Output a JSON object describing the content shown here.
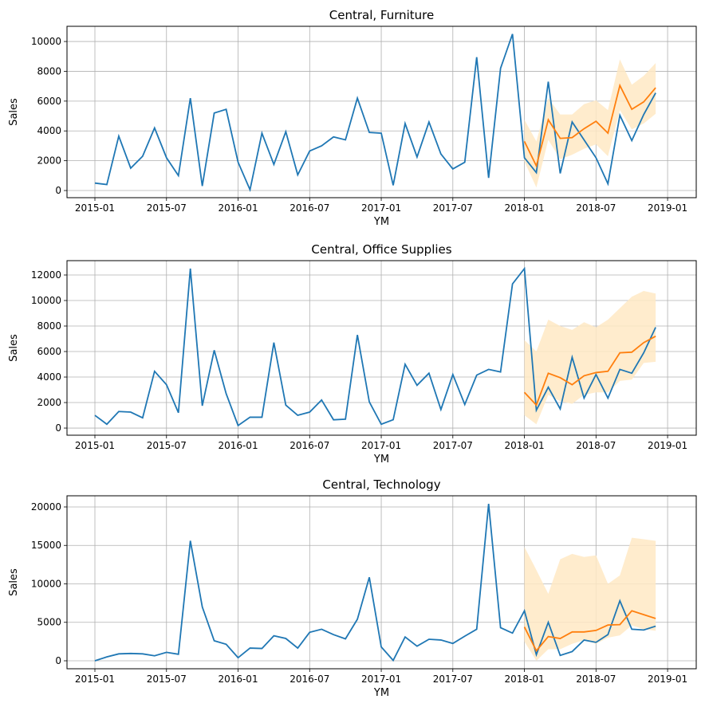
{
  "chart_data": [
    {
      "type": "line",
      "title": "Central, Furniture",
      "xlabel": "YM",
      "ylabel": "Sales",
      "grid": true,
      "x_start": "2015-01",
      "x_end": "2018-12",
      "xlim": [
        "2014-10",
        "2019-03"
      ],
      "ylim": [
        -480,
        11020
      ],
      "xticks": [
        "2015-01",
        "2015-07",
        "2016-01",
        "2016-07",
        "2017-01",
        "2017-07",
        "2018-01",
        "2018-07",
        "2019-01"
      ],
      "yticks": [
        0,
        2000,
        4000,
        6000,
        8000,
        10000
      ],
      "actual": [
        500,
        400,
        3650,
        1500,
        2300,
        4200,
        2200,
        1000,
        6200,
        300,
        5200,
        5450,
        1900,
        50,
        3850,
        1750,
        3950,
        1050,
        2650,
        3000,
        3600,
        3400,
        6200,
        3900,
        3850,
        350,
        4500,
        2250,
        4600,
        2450,
        1450,
        1900,
        8950,
        850,
        8200,
        10500,
        2200,
        1200,
        7300,
        1150,
        4600,
        3400,
        2200,
        450,
        5050,
        3350,
        5100,
        6550
      ],
      "forecast_start": "2018-01",
      "forecast": [
        3300,
        1650,
        4750,
        3500,
        3550,
        4150,
        4650,
        3850,
        7050,
        5450,
        5950,
        6900
      ],
      "lower": [
        1950,
        200,
        3400,
        2100,
        2400,
        2800,
        3100,
        2300,
        5400,
        4100,
        4500,
        5150
      ],
      "upper": [
        4750,
        3300,
        6200,
        5100,
        5100,
        5800,
        6050,
        5400,
        8800,
        7100,
        7700,
        8550
      ]
    },
    {
      "type": "line",
      "title": "Central, Office Supplies",
      "xlabel": "YM",
      "ylabel": "Sales",
      "grid": true,
      "x_start": "2015-01",
      "x_end": "2018-12",
      "xlim": [
        "2014-10",
        "2019-03"
      ],
      "ylim": [
        -560,
        13125
      ],
      "xticks": [
        "2015-01",
        "2015-07",
        "2016-01",
        "2016-07",
        "2017-01",
        "2017-07",
        "2018-01",
        "2018-07",
        "2019-01"
      ],
      "yticks": [
        0,
        2000,
        4000,
        6000,
        8000,
        10000,
        12000
      ],
      "actual": [
        1000,
        300,
        1300,
        1250,
        800,
        4450,
        3400,
        1200,
        12500,
        1750,
        6100,
        2700,
        200,
        850,
        850,
        6700,
        1800,
        1000,
        1250,
        2200,
        650,
        700,
        7300,
        2050,
        300,
        650,
        5000,
        3350,
        4300,
        1450,
        4200,
        1850,
        4150,
        4600,
        4400,
        11300,
        12500,
        1400,
        3200,
        1500,
        5550,
        2350,
        4200,
        2350,
        4600,
        4300,
        5900,
        7900
      ],
      "forecast_start": "2018-01",
      "forecast": [
        2800,
        1800,
        4300,
        3950,
        3400,
        4100,
        4350,
        4450,
        5900,
        5950,
        6700,
        7200
      ],
      "lower": [
        1000,
        300,
        2600,
        2100,
        1900,
        2600,
        2800,
        2800,
        3700,
        3800,
        5100,
        5200
      ],
      "upper": [
        6900,
        6000,
        8500,
        8000,
        7700,
        8300,
        7900,
        8500,
        9400,
        10300,
        10750,
        10550
      ]
    },
    {
      "type": "line",
      "title": "Central, Technology",
      "xlabel": "YM",
      "ylabel": "Sales",
      "grid": true,
      "x_start": "2015-01",
      "x_end": "2018-12",
      "xlim": [
        "2014-10",
        "2019-03"
      ],
      "ylim": [
        -1036,
        21450
      ],
      "xticks": [
        "2015-01",
        "2015-07",
        "2016-01",
        "2016-07",
        "2017-01",
        "2017-07",
        "2018-01",
        "2018-07",
        "2019-01"
      ],
      "yticks": [
        0,
        5000,
        10000,
        15000,
        20000
      ],
      "actual": [
        0,
        500,
        900,
        950,
        900,
        650,
        1100,
        850,
        15600,
        7000,
        2600,
        2150,
        400,
        1650,
        1600,
        3250,
        2900,
        1650,
        3700,
        4100,
        3400,
        2850,
        5400,
        10850,
        1800,
        50,
        3100,
        1900,
        2800,
        2700,
        2250,
        3200,
        4100,
        20400,
        4300,
        3600,
        6500,
        800,
        5000,
        700,
        1200,
        2700,
        2400,
        3400,
        7800,
        4100,
        4000,
        4500
      ],
      "forecast_start": "2018-01",
      "forecast": [
        4400,
        1300,
        3150,
        2900,
        3750,
        3750,
        3950,
        4650,
        4700,
        6500,
        6000,
        5500
      ],
      "lower": [
        2500,
        0,
        1500,
        1500,
        2200,
        2700,
        2200,
        3000,
        3300,
        4600,
        4100,
        3900
      ],
      "upper": [
        14800,
        11800,
        8700,
        13200,
        13900,
        13500,
        13700,
        10000,
        11100,
        16000,
        15800,
        15600
      ]
    }
  ],
  "colors": {
    "actual": "#1f77b4",
    "forecast": "#ff7f0e",
    "band": "#ffe9c4"
  }
}
